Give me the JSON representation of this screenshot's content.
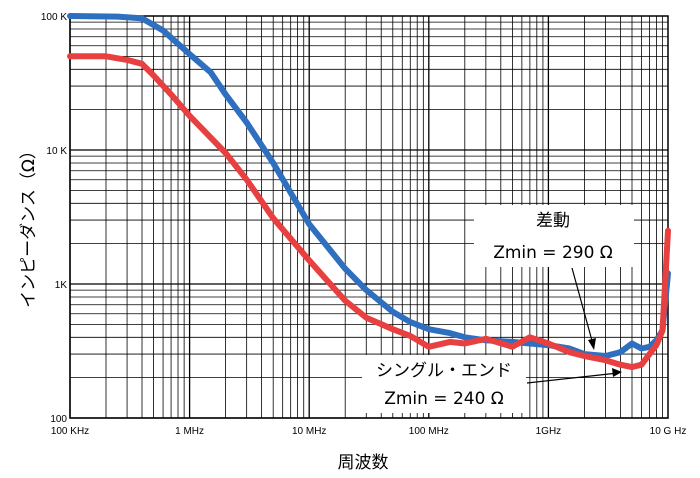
{
  "chart_data": {
    "type": "line",
    "title": "",
    "xlabel": "周波数",
    "ylabel": "インピーダンス（Ω）",
    "x_scale": "log",
    "y_scale": "log",
    "xlim": [
      100000,
      10000000000
    ],
    "ylim": [
      100,
      100000
    ],
    "grid": true,
    "x_tick_labels": [
      "100 KHz",
      "1 MHz",
      "10 MHz",
      "100 MHz",
      "1GHz",
      "10 G Hz"
    ],
    "y_tick_labels": [
      "100",
      "1K",
      "10 K",
      "100 K"
    ],
    "series": [
      {
        "color": "#2f6fbf",
        "x": [
          100000,
          250000,
          400000,
          600000,
          1000000,
          1500000,
          2000000,
          3000000,
          5000000,
          10000000,
          20000000,
          30000000,
          50000000,
          70000000,
          100000000,
          150000000,
          200000000,
          300000000,
          500000000,
          700000000,
          1000000000,
          1500000000,
          2000000000,
          3000000000,
          4000000000,
          5000000000,
          6000000000,
          7000000000,
          8000000000,
          9000000000,
          10000000000
        ],
        "y": [
          100000,
          99000,
          96000,
          78000,
          52000,
          38000,
          26000,
          16000,
          8000,
          2800,
          1300,
          900,
          620,
          520,
          460,
          430,
          400,
          380,
          370,
          360,
          350,
          330,
          300,
          290,
          310,
          360,
          330,
          340,
          380,
          450,
          1200
        ]
      },
      {
        "color": "#e84040",
        "x": [
          100000,
          200000,
          300000,
          400000,
          500000,
          700000,
          1000000,
          2000000,
          3000000,
          5000000,
          10000000,
          20000000,
          30000000,
          50000000,
          70000000,
          100000000,
          150000000,
          200000000,
          300000000,
          500000000,
          700000000,
          1000000000,
          1500000000,
          2000000000,
          3000000000,
          4000000000,
          5000000000,
          6000000000,
          7000000000,
          8000000000,
          9000000000,
          10000000000
        ],
        "y": [
          50000,
          50000,
          47000,
          44000,
          36000,
          26000,
          18000,
          9500,
          6000,
          3100,
          1500,
          750,
          560,
          460,
          410,
          340,
          370,
          360,
          390,
          340,
          400,
          360,
          310,
          290,
          270,
          250,
          240,
          250,
          300,
          350,
          450,
          2500
        ]
      }
    ],
    "annotations": [
      {
        "line1": "差動",
        "line2": "Zmin = 290 Ω"
      },
      {
        "line1": "シングル・エンド",
        "line2": "Zmin = 240 Ω"
      }
    ]
  }
}
